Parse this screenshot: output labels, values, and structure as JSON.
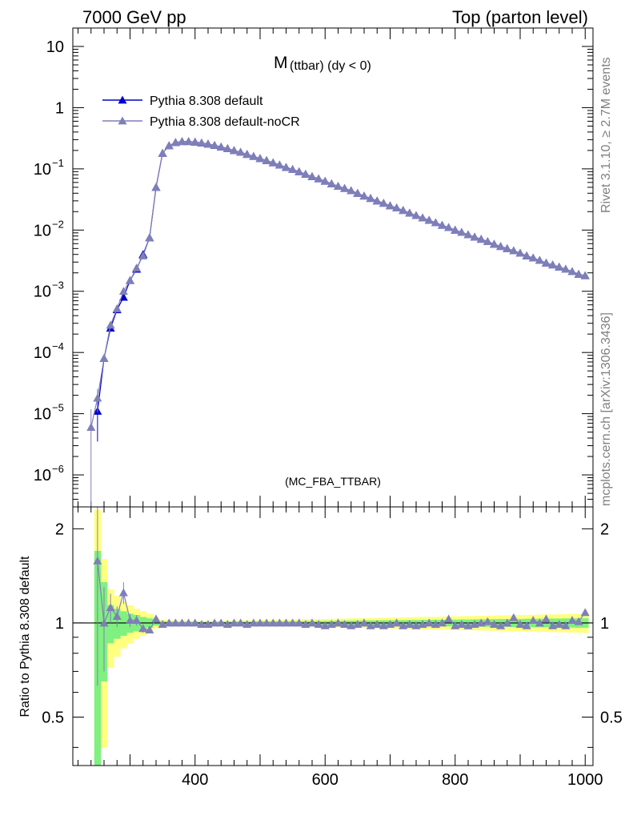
{
  "header": {
    "left": "7000 GeV pp",
    "right": "Top (parton level)"
  },
  "side_labels": {
    "rivet": "Rivet 3.1.10, ≥ 2.7M events",
    "source": "mcplots.cern.ch [arXiv:1306.3436]"
  },
  "chart_data": [
    {
      "type": "line",
      "title_main": "M",
      "title_sub": " (ttbar) (dy < 0)",
      "watermark": "(MC_FBA_TTBAR)",
      "xlabel": "",
      "ylabel": "",
      "y_scale": "log",
      "xlim": [
        212,
        1012
      ],
      "ylim": [
        3e-07,
        20
      ],
      "y_ticks": [
        {
          "value": 10,
          "label": "10"
        },
        {
          "value": 1,
          "label": "1"
        },
        {
          "value": 0.1,
          "label": "10",
          "exp": "−1"
        },
        {
          "value": 0.01,
          "label": "10",
          "exp": "−2"
        },
        {
          "value": 0.001,
          "label": "10",
          "exp": "−3"
        },
        {
          "value": 0.0001,
          "label": "10",
          "exp": "−4"
        },
        {
          "value": 1e-05,
          "label": "10",
          "exp": "−5"
        },
        {
          "value": 1e-06,
          "label": "10",
          "exp": "−6"
        }
      ],
      "x_ticks": [
        400,
        600,
        800,
        1000
      ],
      "legend_position": "top-left",
      "series": [
        {
          "name": "Pythia 8.308 default",
          "color": "#0000cc",
          "marker": "filled-triangle",
          "x": [
            250,
            260,
            270,
            280,
            290,
            300,
            310,
            320,
            330,
            340,
            350,
            360,
            370,
            380,
            390,
            400,
            410,
            420,
            430,
            440,
            450,
            460,
            470,
            480,
            490,
            500,
            510,
            520,
            530,
            540,
            550,
            560,
            570,
            580,
            590,
            600,
            610,
            620,
            630,
            640,
            650,
            660,
            670,
            680,
            690,
            700,
            710,
            720,
            730,
            740,
            750,
            760,
            770,
            780,
            790,
            800,
            810,
            820,
            830,
            840,
            850,
            860,
            870,
            880,
            890,
            900,
            910,
            920,
            930,
            940,
            950,
            960,
            970,
            980,
            990,
            1000
          ],
          "y": [
            1.1e-05,
            8e-05,
            0.00025,
            0.0005,
            0.0008,
            0.0015,
            0.0023,
            0.004,
            0.0075,
            0.05,
            0.18,
            0.24,
            0.27,
            0.28,
            0.28,
            0.275,
            0.265,
            0.255,
            0.242,
            0.228,
            0.215,
            0.2,
            0.187,
            0.173,
            0.16,
            0.148,
            0.137,
            0.126,
            0.116,
            0.106,
            0.098,
            0.09,
            0.082,
            0.075,
            0.069,
            0.063,
            0.057,
            0.052,
            0.048,
            0.044,
            0.04,
            0.036,
            0.033,
            0.03,
            0.0275,
            0.025,
            0.023,
            0.021,
            0.019,
            0.0173,
            0.0158,
            0.0145,
            0.0132,
            0.012,
            0.011,
            0.01,
            0.0092,
            0.0084,
            0.0077,
            0.0071,
            0.0065,
            0.0059,
            0.0054,
            0.005,
            0.0046,
            0.0042,
            0.0038,
            0.0035,
            0.0032,
            0.0029,
            0.0027,
            0.0025,
            0.0023,
            0.0021,
            0.0019,
            0.0018
          ],
          "y_err": [
            7.5e-06,
            1e-05,
            3e-05,
            4e-05,
            6e-05,
            0.0001,
            0.0001,
            0.00015,
            0.0002,
            0.001,
            0.002,
            0.002,
            0.002,
            0.002,
            0.002,
            0.002,
            0.002,
            0.002,
            0.002,
            0.002,
            0.002,
            0.002,
            0.002,
            0.002,
            0.002,
            0.002,
            0.001,
            0.001,
            0.001,
            0.001,
            0.001,
            0.001,
            0.001,
            0.001,
            0.0005,
            0.0005,
            0.0005,
            0.0005,
            0.0005,
            0.0005,
            0.0004,
            0.0004,
            0.0003,
            0.0003,
            0.0003,
            0.0003,
            0.0002,
            0.0002,
            0.0002,
            0.0002,
            0.0002,
            0.0002,
            0.0002,
            0.0002,
            0.0002,
            0.0002,
            0.0001,
            0.0001,
            0.0001,
            0.0001,
            0.0001,
            0.0001,
            0.0001,
            0.0001,
            0.0001,
            0.0001,
            0.0001,
            0.0001,
            0.0001,
            0.0001,
            0.0001,
            0.0001,
            0.0001,
            0.0001,
            0.0001,
            0.0001
          ]
        },
        {
          "name": "Pythia 8.308 default-noCR",
          "color": "#7f7fb8",
          "marker": "filled-triangle",
          "x": [
            240,
            250,
            260,
            270,
            280,
            290,
            300,
            310,
            320,
            330,
            340,
            350,
            360,
            370,
            380,
            390,
            400,
            410,
            420,
            430,
            440,
            450,
            460,
            470,
            480,
            490,
            500,
            510,
            520,
            530,
            540,
            550,
            560,
            570,
            580,
            590,
            600,
            610,
            620,
            630,
            640,
            650,
            660,
            670,
            680,
            690,
            700,
            710,
            720,
            730,
            740,
            750,
            760,
            770,
            780,
            790,
            800,
            810,
            820,
            830,
            840,
            850,
            860,
            870,
            880,
            890,
            900,
            910,
            920,
            930,
            940,
            950,
            960,
            970,
            980,
            990,
            1000
          ],
          "y": [
            6e-06,
            1.8e-05,
            8e-05,
            0.00028,
            0.00052,
            0.001,
            0.0015,
            0.0024,
            0.0038,
            0.0075,
            0.05,
            0.18,
            0.24,
            0.27,
            0.28,
            0.28,
            0.275,
            0.265,
            0.255,
            0.242,
            0.228,
            0.215,
            0.2,
            0.187,
            0.173,
            0.16,
            0.148,
            0.137,
            0.126,
            0.116,
            0.106,
            0.098,
            0.09,
            0.082,
            0.075,
            0.069,
            0.063,
            0.057,
            0.052,
            0.048,
            0.044,
            0.04,
            0.036,
            0.033,
            0.03,
            0.0275,
            0.025,
            0.023,
            0.021,
            0.019,
            0.0173,
            0.0158,
            0.0145,
            0.0132,
            0.012,
            0.011,
            0.01,
            0.0092,
            0.0084,
            0.0077,
            0.0071,
            0.0065,
            0.0059,
            0.0054,
            0.005,
            0.0046,
            0.0042,
            0.0038,
            0.0035,
            0.0032,
            0.0029,
            0.0027,
            0.0025,
            0.0023,
            0.0021,
            0.0019,
            0.0018
          ],
          "y_err": [
            5.8e-06,
            7.5e-06,
            1e-05,
            3e-05,
            4e-05,
            6e-05,
            0.0001,
            0.0001,
            0.00015,
            0.0002,
            0.001,
            0.002,
            0.002,
            0.002,
            0.002,
            0.002,
            0.002,
            0.002,
            0.002,
            0.002,
            0.002,
            0.002,
            0.002,
            0.002,
            0.002,
            0.002,
            0.002,
            0.001,
            0.001,
            0.001,
            0.001,
            0.001,
            0.001,
            0.001,
            0.001,
            0.0005,
            0.0005,
            0.0005,
            0.0005,
            0.0005,
            0.0005,
            0.0004,
            0.0004,
            0.0003,
            0.0003,
            0.0003,
            0.0003,
            0.0002,
            0.0002,
            0.0002,
            0.0002,
            0.0002,
            0.0002,
            0.0002,
            0.0002,
            0.0002,
            0.0002,
            0.0001,
            0.0001,
            0.0001,
            0.0001,
            0.0001,
            0.0001,
            0.0001,
            0.0001,
            0.0001,
            0.0001,
            0.0001,
            0.0001,
            0.0001,
            0.0001,
            0.0001,
            0.0001,
            0.0001,
            0.0001,
            0.0001,
            0.0001
          ]
        }
      ]
    },
    {
      "type": "line",
      "ylabel": "Ratio to Pythia 8.308 default",
      "xlabel": "",
      "y_scale": "log",
      "xlim": [
        212,
        1012
      ],
      "ylim": [
        0.35,
        2.35
      ],
      "y_ticks": [
        {
          "value": 0.5,
          "label": "0.5"
        },
        {
          "value": 1,
          "label": "1"
        },
        {
          "value": 2,
          "label": "2"
        }
      ],
      "x_ticks": [
        {
          "value": 400,
          "label": "400"
        },
        {
          "value": 600,
          "label": "600"
        },
        {
          "value": 800,
          "label": "800"
        },
        {
          "value": 1000,
          "label": "1000"
        }
      ],
      "reference_line": 1,
      "bands": {
        "bin_width": 10,
        "x": [
          250,
          260,
          270,
          280,
          290,
          300,
          310,
          320,
          330,
          340,
          350,
          360,
          370,
          380,
          390,
          400,
          410,
          420,
          430,
          440,
          450,
          460,
          470,
          480,
          490,
          500,
          510,
          520,
          530,
          540,
          550,
          560,
          570,
          580,
          590,
          600,
          610,
          620,
          630,
          640,
          650,
          660,
          670,
          680,
          690,
          700,
          710,
          720,
          730,
          740,
          750,
          760,
          770,
          780,
          790,
          800,
          810,
          820,
          830,
          840,
          850,
          860,
          870,
          880,
          890,
          900,
          910,
          920,
          930,
          940,
          950,
          960,
          970,
          980,
          990,
          1000
        ],
        "inner": [
          0.7,
          0.35,
          0.14,
          0.11,
          0.09,
          0.07,
          0.06,
          0.045,
          0.035,
          0.02,
          0.012,
          0.01,
          0.009,
          0.008,
          0.008,
          0.008,
          0.008,
          0.008,
          0.008,
          0.009,
          0.009,
          0.009,
          0.01,
          0.01,
          0.01,
          0.011,
          0.011,
          0.012,
          0.012,
          0.012,
          0.013,
          0.013,
          0.014,
          0.014,
          0.015,
          0.015,
          0.016,
          0.016,
          0.017,
          0.017,
          0.018,
          0.018,
          0.019,
          0.019,
          0.02,
          0.02,
          0.021,
          0.021,
          0.022,
          0.022,
          0.023,
          0.023,
          0.024,
          0.024,
          0.025,
          0.025,
          0.026,
          0.026,
          0.027,
          0.027,
          0.028,
          0.028,
          0.029,
          0.029,
          0.03,
          0.03,
          0.031,
          0.031,
          0.032,
          0.032,
          0.033,
          0.033,
          0.034,
          0.034,
          0.035,
          0.035
        ],
        "outer": [
          1.3,
          0.6,
          0.28,
          0.22,
          0.17,
          0.14,
          0.11,
          0.09,
          0.07,
          0.04,
          0.025,
          0.02,
          0.018,
          0.017,
          0.016,
          0.016,
          0.016,
          0.016,
          0.017,
          0.017,
          0.018,
          0.018,
          0.019,
          0.02,
          0.02,
          0.021,
          0.022,
          0.023,
          0.023,
          0.024,
          0.025,
          0.026,
          0.027,
          0.028,
          0.029,
          0.03,
          0.031,
          0.032,
          0.033,
          0.034,
          0.035,
          0.036,
          0.037,
          0.038,
          0.039,
          0.04,
          0.041,
          0.042,
          0.043,
          0.044,
          0.045,
          0.046,
          0.047,
          0.048,
          0.049,
          0.05,
          0.051,
          0.052,
          0.053,
          0.054,
          0.055,
          0.056,
          0.057,
          0.058,
          0.059,
          0.06,
          0.061,
          0.062,
          0.063,
          0.064,
          0.065,
          0.066,
          0.067,
          0.068,
          0.069,
          0.07
        ]
      },
      "ratio_series": {
        "name": "Pythia 8.308 default-noCR",
        "color": "#7f7fb8",
        "x": [
          250,
          260,
          270,
          280,
          290,
          300,
          310,
          320,
          330,
          340,
          350,
          360,
          370,
          380,
          390,
          400,
          410,
          420,
          430,
          440,
          450,
          460,
          470,
          480,
          490,
          500,
          510,
          520,
          530,
          540,
          550,
          560,
          570,
          580,
          590,
          600,
          610,
          620,
          630,
          640,
          650,
          660,
          670,
          680,
          690,
          700,
          710,
          720,
          730,
          740,
          750,
          760,
          770,
          780,
          790,
          800,
          810,
          820,
          830,
          840,
          850,
          860,
          870,
          880,
          890,
          900,
          910,
          920,
          930,
          940,
          950,
          960,
          970,
          980,
          990,
          1000
        ],
        "y": [
          1.58,
          1.0,
          1.12,
          1.05,
          1.25,
          1.02,
          1.02,
          0.96,
          0.95,
          1.03,
          0.99,
          1.0,
          1.0,
          1.0,
          1.0,
          1.0,
          0.99,
          0.99,
          1.0,
          1.0,
          0.99,
          1.0,
          1.0,
          0.99,
          1.0,
          1.0,
          1.0,
          1.0,
          1.0,
          1.0,
          1.0,
          1.0,
          0.99,
          1.0,
          0.99,
          0.98,
          0.99,
          1.0,
          0.99,
          0.98,
          0.99,
          1.0,
          0.98,
          0.99,
          0.98,
          0.99,
          1.0,
          0.98,
          0.99,
          0.98,
          0.99,
          1.0,
          0.99,
          1.0,
          1.03,
          0.98,
          0.99,
          0.98,
          0.99,
          1.0,
          1.01,
          0.99,
          0.98,
          1.0,
          1.04,
          0.99,
          0.98,
          1.02,
          1.0,
          1.03,
          0.98,
          0.99,
          0.98,
          1.02,
          1.01,
          1.08
        ],
        "y_err": [
          0.95,
          0.3,
          0.12,
          0.08,
          0.1,
          0.05,
          0.04,
          0.03,
          0.02,
          0.01,
          0.005,
          0.005,
          0.005,
          0.005,
          0.005,
          0.005,
          0.005,
          0.005,
          0.005,
          0.005,
          0.005,
          0.005,
          0.005,
          0.005,
          0.005,
          0.005,
          0.005,
          0.005,
          0.005,
          0.005,
          0.005,
          0.005,
          0.005,
          0.005,
          0.005,
          0.005,
          0.005,
          0.005,
          0.005,
          0.005,
          0.005,
          0.005,
          0.005,
          0.005,
          0.005,
          0.005,
          0.005,
          0.005,
          0.005,
          0.005,
          0.005,
          0.005,
          0.005,
          0.005,
          0.01,
          0.005,
          0.005,
          0.005,
          0.005,
          0.005,
          0.01,
          0.005,
          0.005,
          0.005,
          0.01,
          0.005,
          0.005,
          0.01,
          0.005,
          0.01,
          0.005,
          0.005,
          0.005,
          0.01,
          0.01,
          0.02
        ]
      }
    }
  ]
}
